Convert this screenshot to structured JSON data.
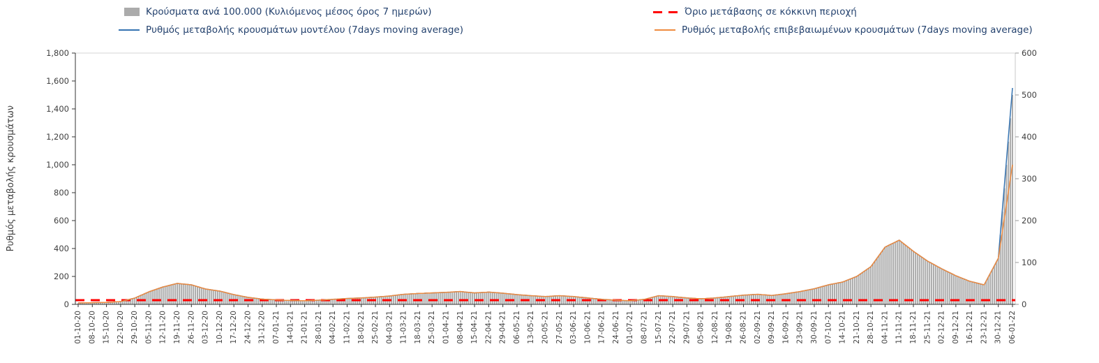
{
  "legend": {
    "bars_label": "Κρούσματα ανά 100.000 (Κυλιόμενος μέσος όρος 7 ημερών)",
    "threshold_label": "Όριο μετάβασης σε κόκκινη περιοχή",
    "model_label": "Ρυθμός μεταβολής κρουσμάτων μοντέλου (7days moving average)",
    "confirmed_label": "Ρυθμός μεταβολής επιβεβαιωμένων κρουσμάτων (7days moving average)"
  },
  "axes": {
    "y_left": {
      "title": "Ρυθμός μεταβολής κρουσμάτων",
      "min": 0,
      "max": 1800,
      "ticks": [
        "0",
        "200",
        "400",
        "600",
        "800",
        "1,000",
        "1,200",
        "1,400",
        "1,600",
        "1,800"
      ]
    },
    "y_right": {
      "min": 0,
      "max": 600,
      "ticks": [
        "0",
        "100",
        "200",
        "300",
        "400",
        "500",
        "600"
      ]
    }
  },
  "colors": {
    "bar": "#ababab",
    "model_line": "#3573b1",
    "confirmed_line": "#ef8b3f",
    "threshold_line": "#ff0000",
    "legend_text": "#24426e",
    "tick_text": "#3f3f3f"
  },
  "chart_data": {
    "type": "bar",
    "categories": [
      "01-10-20",
      "08-10-20",
      "15-10-20",
      "22-10-20",
      "29-10-20",
      "05-11-20",
      "12-11-20",
      "19-11-20",
      "26-11-20",
      "03-12-20",
      "10-12-20",
      "17-12-20",
      "24-12-20",
      "31-12-20",
      "07-01-21",
      "14-01-21",
      "21-01-21",
      "28-01-21",
      "04-02-21",
      "11-02-21",
      "18-02-21",
      "25-02-21",
      "04-03-21",
      "11-03-21",
      "18-03-21",
      "25-03-21",
      "01-04-21",
      "08-04-21",
      "15-04-21",
      "22-04-21",
      "29-04-21",
      "06-05-21",
      "13-05-21",
      "20-05-21",
      "27-05-21",
      "03-06-21",
      "10-06-21",
      "17-06-21",
      "24-06-21",
      "01-07-21",
      "08-07-21",
      "15-07-21",
      "22-07-21",
      "29-07-21",
      "05-08-21",
      "12-08-21",
      "19-08-21",
      "26-08-21",
      "02-09-21",
      "09-09-21",
      "16-09-21",
      "23-09-21",
      "30-09-21",
      "07-10-21",
      "14-10-21",
      "21-10-21",
      "28-10-21",
      "04-11-21",
      "11-11-21",
      "18-11-21",
      "25-11-21",
      "02-12-21",
      "09-12-21",
      "16-12-21",
      "23-12-21",
      "30-12-21",
      "06-01-22"
    ],
    "series": [
      {
        "name": "Κρούσματα ανά 100.000 (Κυλιόμενος μέσος όρος 7 ημερών)",
        "type": "bar",
        "axis": "right",
        "values": [
          3,
          4,
          5,
          7,
          15,
          30,
          42,
          50,
          47,
          37,
          32,
          23,
          17,
          13,
          11,
          9,
          9,
          10,
          12,
          14,
          15,
          17,
          20,
          24,
          26,
          27,
          29,
          31,
          27,
          29,
          27,
          23,
          21,
          19,
          21,
          19,
          15,
          12,
          10,
          9,
          12,
          21,
          19,
          15,
          13,
          15,
          19,
          22,
          24,
          21,
          25,
          31,
          37,
          47,
          53,
          67,
          90,
          137,
          153,
          127,
          103,
          85,
          68,
          55,
          47,
          110,
          500
        ]
      },
      {
        "name": "Ρυθμός μεταβολής κρουσμάτων μοντέλου (7days moving average)",
        "type": "line",
        "axis": "left",
        "values": [
          10,
          12,
          14,
          20,
          45,
          90,
          125,
          150,
          140,
          110,
          95,
          70,
          50,
          38,
          32,
          28,
          26,
          30,
          36,
          42,
          46,
          52,
          60,
          72,
          78,
          82,
          86,
          92,
          82,
          88,
          80,
          70,
          62,
          56,
          62,
          56,
          46,
          36,
          30,
          26,
          36,
          62,
          56,
          46,
          40,
          46,
          56,
          66,
          72,
          64,
          76,
          92,
          112,
          140,
          160,
          200,
          270,
          410,
          460,
          380,
          310,
          255,
          205,
          165,
          140,
          330,
          1550
        ]
      },
      {
        "name": "Ρυθμός μεταβολής επιβεβαιωμένων κρουσμάτων (7days moving average)",
        "type": "line",
        "axis": "left",
        "values": [
          10,
          12,
          14,
          20,
          45,
          90,
          125,
          150,
          140,
          110,
          95,
          70,
          50,
          38,
          32,
          28,
          26,
          30,
          36,
          42,
          46,
          52,
          60,
          72,
          78,
          82,
          86,
          92,
          82,
          88,
          80,
          70,
          62,
          56,
          62,
          56,
          46,
          36,
          30,
          26,
          36,
          62,
          56,
          46,
          40,
          46,
          56,
          66,
          72,
          64,
          76,
          92,
          112,
          140,
          160,
          200,
          270,
          410,
          460,
          380,
          310,
          255,
          205,
          165,
          140,
          330,
          1000
        ]
      },
      {
        "name": "Όριο μετάβασης σε κόκκινη περιοχή",
        "type": "threshold",
        "axis": "left",
        "value": 30
      }
    ],
    "ylim_left": [
      0,
      1800
    ],
    "ylim_right": [
      0,
      600
    ],
    "x_tick_interval_days": 7
  }
}
